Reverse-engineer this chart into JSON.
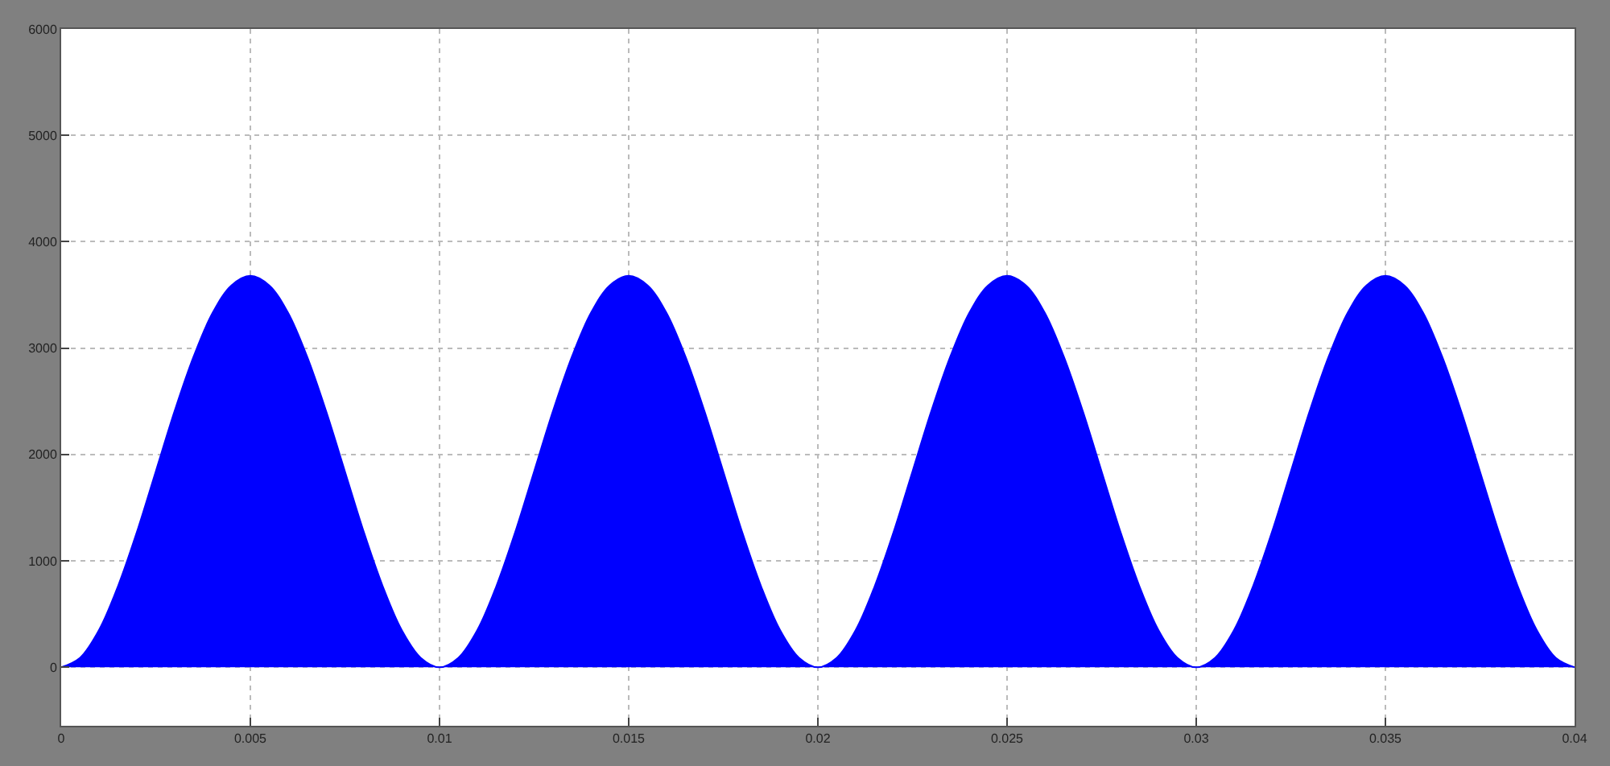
{
  "chart_data": {
    "type": "area",
    "x": [
      0,
      0.0005,
      0.001,
      0.0015,
      0.002,
      0.0025,
      0.003,
      0.0035,
      0.004,
      0.0045,
      0.005,
      0.0055,
      0.006,
      0.0065,
      0.007,
      0.0075,
      0.008,
      0.0085,
      0.009,
      0.0095,
      0.01,
      0.0105,
      0.011,
      0.0115,
      0.012,
      0.0125,
      0.013,
      0.0135,
      0.014,
      0.0145,
      0.015,
      0.0155,
      0.016,
      0.0165,
      0.017,
      0.0175,
      0.018,
      0.0185,
      0.019,
      0.0195,
      0.02,
      0.0205,
      0.021,
      0.0215,
      0.022,
      0.0225,
      0.023,
      0.0235,
      0.024,
      0.0245,
      0.025,
      0.0255,
      0.026,
      0.0265,
      0.027,
      0.0275,
      0.028,
      0.0285,
      0.029,
      0.0295,
      0.03,
      0.0305,
      0.031,
      0.0315,
      0.032,
      0.0325,
      0.033,
      0.0335,
      0.034,
      0.0345,
      0.035,
      0.0355,
      0.036,
      0.0365,
      0.037,
      0.0375,
      0.038,
      0.0385,
      0.039,
      0.0395,
      0.04
    ],
    "series": [
      {
        "color": "#0000ff",
        "values": [
          0,
          90,
          350,
          760,
          1270,
          1840,
          2410,
          2920,
          3330,
          3590,
          3680,
          3590,
          3330,
          2920,
          2410,
          1840,
          1270,
          760,
          350,
          90,
          0,
          90,
          350,
          760,
          1270,
          1840,
          2410,
          2920,
          3330,
          3590,
          3680,
          3590,
          3330,
          2920,
          2410,
          1840,
          1270,
          760,
          350,
          90,
          0,
          90,
          350,
          760,
          1270,
          1840,
          2410,
          2920,
          3330,
          3590,
          3680,
          3590,
          3330,
          2920,
          2410,
          1840,
          1270,
          760,
          350,
          90,
          0,
          90,
          350,
          760,
          1270,
          1840,
          2410,
          2920,
          3330,
          3590,
          3680,
          3590,
          3330,
          2920,
          2410,
          1840,
          1270,
          760,
          350,
          90,
          0
        ]
      }
    ],
    "xlim": [
      0,
      0.04
    ],
    "xticks": [
      0,
      0.005,
      0.01,
      0.015,
      0.02,
      0.025,
      0.03,
      0.035,
      0.04
    ],
    "ylim": [
      -550,
      6000
    ],
    "yticks": [
      0,
      1000,
      2000,
      3000,
      4000,
      5000,
      6000
    ],
    "grid": true
  }
}
